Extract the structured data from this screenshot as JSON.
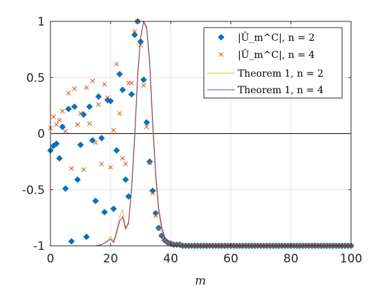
{
  "chart_data": {
    "type": "scatter",
    "xlabel": "m",
    "ylabel": "",
    "xlim": [
      0,
      100
    ],
    "ylim": [
      -1,
      1
    ],
    "grid": true,
    "legend_position": "top-right",
    "x_ticks": [
      0,
      20,
      40,
      60,
      80,
      100
    ],
    "y_ticks": [
      -1,
      -0.5,
      0,
      0.5,
      1
    ],
    "x_tick_labels": [
      "0",
      "20",
      "40",
      "60",
      "80",
      "100"
    ],
    "y_tick_labels": [
      "-1",
      "-0.5",
      "0",
      "0.5",
      "1"
    ],
    "series": [
      {
        "name": "|Û_m^C|, n = 2",
        "kind": "markers",
        "marker": "filled-diamond",
        "color": "#0072BD",
        "x": [
          0,
          1,
          2,
          3,
          4,
          5,
          6,
          7,
          8,
          9,
          10,
          11,
          12,
          13,
          14,
          15,
          16,
          17,
          18,
          19,
          20,
          21,
          22,
          23,
          24,
          25,
          26,
          27,
          28,
          29,
          30,
          31,
          32,
          33,
          34,
          35,
          36,
          37,
          38,
          39,
          40,
          41,
          42,
          43,
          44,
          45,
          46,
          47,
          48,
          49,
          50,
          51,
          52,
          53,
          54,
          55,
          56,
          57,
          58,
          59,
          60,
          61,
          62,
          63,
          64,
          65,
          66,
          67,
          68,
          69,
          70,
          71,
          72,
          73,
          74,
          75,
          76,
          77,
          78,
          79,
          80,
          81,
          82,
          83,
          84,
          85,
          86,
          87,
          88,
          89,
          90,
          91,
          92,
          93,
          94,
          95,
          96,
          97,
          98,
          99,
          100
        ],
        "y": [
          -0.15,
          -0.11,
          -0.09,
          -0.22,
          0.06,
          -0.49,
          0.22,
          -0.96,
          0.24,
          -0.41,
          -0.1,
          0.17,
          -0.92,
          0.24,
          -0.06,
          -0.6,
          0.33,
          -0.04,
          -0.7,
          0.3,
          0.29,
          -0.67,
          -0.15,
          0.53,
          0.39,
          -0.41,
          -0.56,
          0.35,
          0.88,
          1.0,
          0.82,
          0.48,
          0.1,
          -0.25,
          -0.51,
          -0.71,
          -0.84,
          -0.91,
          -0.95,
          -0.97,
          -0.98,
          -0.99,
          -0.99,
          -0.99,
          -1,
          -1,
          -1,
          -1,
          -1,
          -1,
          -1,
          -1,
          -1,
          -1,
          -1,
          -1,
          -1,
          -1,
          -1,
          -1,
          -1,
          -1,
          -1,
          -1,
          -1,
          -1,
          -1,
          -1,
          -1,
          -1,
          -1,
          -1,
          -1,
          -1,
          -1,
          -1,
          -1,
          -1,
          -1,
          -1,
          -1,
          -1,
          -1,
          -1,
          -1,
          -1,
          -1,
          -1,
          -1,
          -1,
          -1,
          -1,
          -1,
          -1,
          -1,
          -1,
          -1,
          -1,
          -1,
          -1,
          -1
        ]
      },
      {
        "name": "|Û_m^C|, n = 4",
        "kind": "markers",
        "marker": "cross",
        "color": "#D95319",
        "x": [
          0,
          1,
          2,
          3,
          4,
          5,
          6,
          7,
          8,
          9,
          10,
          11,
          12,
          13,
          14,
          15,
          16,
          17,
          18,
          19,
          20,
          21,
          22,
          23,
          24,
          25,
          26,
          27,
          28,
          29,
          30,
          31,
          32,
          33,
          34,
          35,
          36,
          37,
          38,
          39,
          40,
          41,
          42,
          43,
          44,
          45,
          46,
          47,
          48,
          49,
          50,
          51,
          52,
          53,
          54,
          55,
          56,
          57,
          58,
          59,
          60,
          61,
          62,
          63,
          64,
          65,
          66,
          67,
          68,
          69,
          70,
          71,
          72,
          73,
          74,
          75,
          76,
          77,
          78,
          79,
          80,
          81,
          82,
          83,
          84,
          85,
          86,
          87,
          88,
          89,
          90,
          91,
          92,
          93,
          94,
          95,
          96,
          97,
          98,
          99,
          100
        ],
        "y": [
          0.05,
          0.15,
          0.08,
          0.12,
          0.2,
          0.02,
          0.36,
          -0.31,
          0.4,
          0.08,
          0.18,
          -0.32,
          0.41,
          0.09,
          0.47,
          -0.08,
          0.26,
          -0.27,
          0.44,
          0.32,
          -0.3,
          0.03,
          0.62,
          0.18,
          -0.22,
          -0.27,
          0.45,
          0.45,
          0.91,
          1.0,
          0.79,
          0.43,
          0.06,
          -0.26,
          -0.53,
          -0.73,
          -0.85,
          -0.91,
          -0.95,
          -0.97,
          -0.98,
          -0.99,
          -0.99,
          -0.99,
          -1,
          -1,
          -1,
          -1,
          -1,
          -1,
          -1,
          -1,
          -1,
          -1,
          -1,
          -1,
          -1,
          -1,
          -1,
          -1,
          -1,
          -1,
          -1,
          -1,
          -1,
          -1,
          -1,
          -1,
          -1,
          -1,
          -1,
          -1,
          -1,
          -1,
          -1,
          -1,
          -1,
          -1,
          -1,
          -1,
          -1,
          -1,
          -1,
          -1,
          -1,
          -1,
          -1,
          -1,
          -1,
          -1,
          -1,
          -1,
          -1,
          -1,
          -1,
          -1,
          -1,
          -1,
          -1,
          -1,
          -1
        ]
      },
      {
        "name": "Theorem 1, n = 2",
        "kind": "line",
        "color": "#EDB120",
        "x": [
          0,
          10,
          15,
          17,
          19,
          20,
          21,
          22,
          23,
          24,
          25,
          26,
          27,
          28,
          29,
          30,
          31,
          32,
          33,
          34,
          35,
          36,
          37,
          38,
          39,
          40,
          41,
          42,
          44,
          46,
          100
        ],
        "y": [
          -1,
          -1,
          -1,
          -0.99,
          -0.95,
          -0.92,
          -0.96,
          -0.86,
          -0.74,
          -0.68,
          -0.84,
          -0.78,
          -0.45,
          0.0,
          0.55,
          0.87,
          0.99,
          0.93,
          0.6,
          0.05,
          -0.4,
          -0.7,
          -0.86,
          -0.93,
          -0.96,
          -0.98,
          -0.99,
          -0.99,
          -1,
          -1,
          -1
        ]
      },
      {
        "name": "Theorem 1, n = 4",
        "kind": "line",
        "color": "#7E2F8E",
        "x": [
          0,
          10,
          15,
          17,
          19,
          20,
          21,
          22,
          23,
          24,
          25,
          26,
          27,
          28,
          29,
          30,
          31,
          32,
          33,
          34,
          35,
          36,
          37,
          38,
          39,
          40,
          41,
          42,
          44,
          46,
          100
        ],
        "y": [
          -1,
          -1,
          -1,
          -0.99,
          -0.96,
          -0.94,
          -0.97,
          -0.89,
          -0.78,
          -0.74,
          -0.85,
          -0.8,
          -0.5,
          -0.05,
          0.5,
          0.85,
          1.0,
          0.95,
          0.65,
          0.12,
          -0.35,
          -0.66,
          -0.83,
          -0.92,
          -0.96,
          -0.98,
          -0.99,
          -0.99,
          -1,
          -1,
          -1
        ]
      }
    ],
    "reference_lines": [
      {
        "axis": "y",
        "value": 0,
        "color": "#000000"
      }
    ]
  }
}
